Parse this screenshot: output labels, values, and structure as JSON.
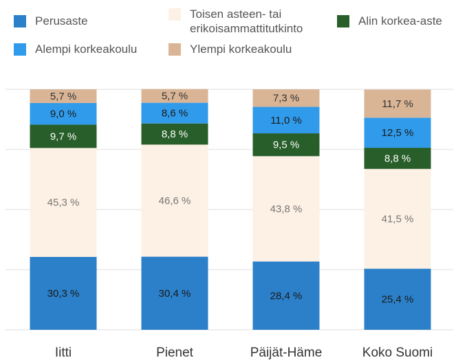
{
  "chart_data": {
    "type": "stacked_bar",
    "categories": [
      "Iitti",
      "Pienet",
      "Päijät-Häme",
      "Koko Suomi"
    ],
    "series": [
      {
        "name": "Perusaste",
        "color": "#2b80c9",
        "label_color": "#1a1a1a",
        "values": [
          30.3,
          30.4,
          28.4,
          25.4
        ],
        "value_labels": [
          "30,3 %",
          "30,4 %",
          "28,4 %",
          "25,4 %"
        ]
      },
      {
        "name": "Toisen asteen- tai erikoisammattitutkinto",
        "color": "#fdf0e4",
        "label_color": "#777777",
        "values": [
          45.3,
          46.6,
          43.8,
          41.5
        ],
        "value_labels": [
          "45,3 %",
          "46,6 %",
          "43,8 %",
          "41,5 %"
        ]
      },
      {
        "name": "Alin korkea-aste",
        "color": "#285e2a",
        "label_color": "#ffffff",
        "values": [
          9.7,
          8.8,
          9.5,
          8.8
        ],
        "value_labels": [
          "9,7 %",
          "8,8 %",
          "9,5 %",
          "8,8 %"
        ]
      },
      {
        "name": "Alempi korkeakoulu",
        "color": "#319beb",
        "label_color": "#1a1a1a",
        "values": [
          9.0,
          8.6,
          11.0,
          12.5
        ],
        "value_labels": [
          "9,0 %",
          "8,6 %",
          "11,0 %",
          "12,5 %"
        ]
      },
      {
        "name": "Ylempi korkeakoulu",
        "color": "#d9b596",
        "label_color": "#333333",
        "values": [
          5.7,
          5.7,
          7.3,
          11.7
        ],
        "value_labels": [
          "5,7 %",
          "5,7 %",
          "7,3 %",
          "11,7 %"
        ]
      }
    ],
    "ylim": [
      0,
      100
    ],
    "yticks": [
      0,
      25,
      50,
      75,
      100
    ],
    "grid": true
  }
}
